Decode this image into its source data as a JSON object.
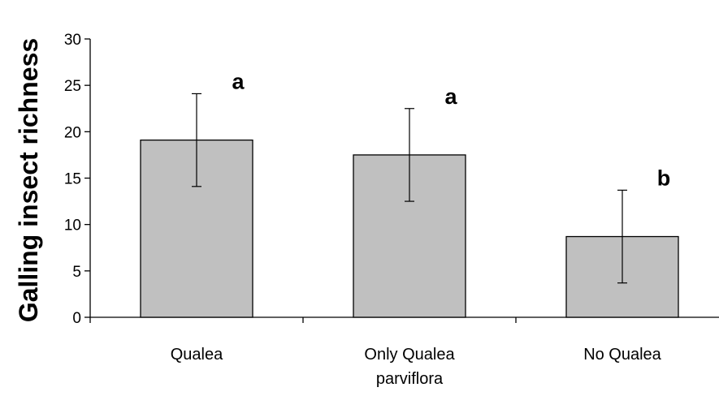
{
  "chart_data": {
    "type": "bar",
    "title": "",
    "xlabel": "",
    "ylabel": "Galling insect richness",
    "ylim": [
      0,
      30
    ],
    "yticks": [
      0,
      5,
      10,
      15,
      20,
      25,
      30
    ],
    "grid": false,
    "categories": [
      [
        "Qualea"
      ],
      [
        "Only Qualea",
        "parviflora"
      ],
      [
        "No Qualea"
      ]
    ],
    "values": [
      19.1,
      17.5,
      8.7
    ],
    "error": [
      5.0,
      5.0,
      5.0
    ],
    "significance_labels": [
      "a",
      "a",
      "b"
    ],
    "colors": {
      "bar_fill": "#c0c0c0",
      "bar_stroke": "#000000",
      "axis": "#000000"
    }
  }
}
